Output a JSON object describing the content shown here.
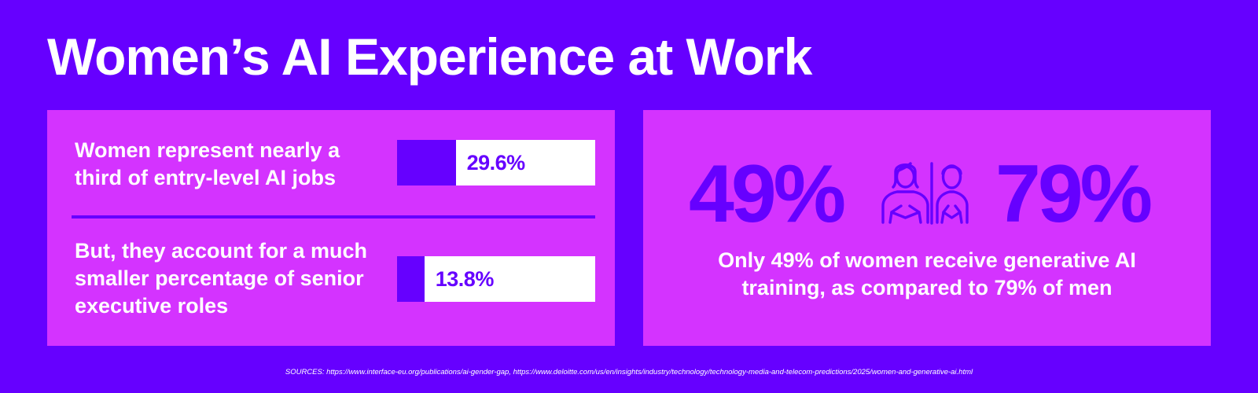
{
  "title": "Women’s AI Experience at Work",
  "left_panel": {
    "stats": [
      {
        "label": "Women represent nearly a third of entry-level AI jobs",
        "value_text": "29.6%",
        "value": 29.6
      },
      {
        "label": "But, they account for a much smaller percentage of senior executive roles",
        "value_text": "13.8%",
        "value": 13.8
      }
    ]
  },
  "right_panel": {
    "women_pct": "49%",
    "men_pct": "79%",
    "icons": [
      "woman-icon",
      "man-icon"
    ],
    "caption": "Only 49% of women receive generative AI training, as compared to 79% of men"
  },
  "sources": "SOURCES: https://www.interface-eu.org/publications/ai-gender-gap, https://www.deloitte.com/us/en/insights/industry/technology/technology-media-and-telecom-predictions/2025/women-and-generative-ai.html",
  "colors": {
    "background": "#6600ff",
    "panel": "#d433ff",
    "text": "#ffffff",
    "bar_track": "#ffffff",
    "bar_fill": "#6600ff"
  }
}
